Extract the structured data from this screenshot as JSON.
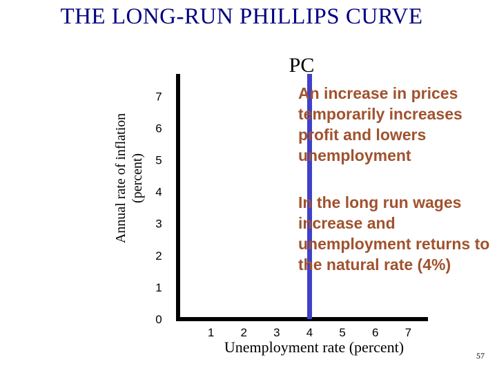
{
  "title": "THE LONG-RUN PHILLIPS CURVE",
  "curve_label": "PC",
  "annotations": [
    "An increase in prices temporarily increases profit and lowers unemployment",
    "In the long run wages increase and unemployment returns to the natural rate (4%)"
  ],
  "page_number": "57",
  "colors": {
    "title": "#000080",
    "curve": "#4040c8",
    "annotation": "#a0522d",
    "axis": "#000000"
  },
  "chart_data": {
    "type": "line",
    "title": "THE LONG-RUN PHILLIPS CURVE",
    "xlabel": "Unemployment rate (percent)",
    "ylabel_lines": [
      "Annual rate of inflation",
      "(percent)"
    ],
    "x_ticks": [
      "1",
      "2",
      "3",
      "4",
      "5",
      "6",
      "7"
    ],
    "y_ticks": [
      "0",
      "1",
      "2",
      "3",
      "4",
      "5",
      "6",
      "7"
    ],
    "xlim": [
      0,
      7.6
    ],
    "ylim": [
      0,
      7.7
    ],
    "series": [
      {
        "name": "PC",
        "x": [
          4,
          4
        ],
        "y": [
          0,
          7.7
        ]
      }
    ],
    "grid": false
  }
}
